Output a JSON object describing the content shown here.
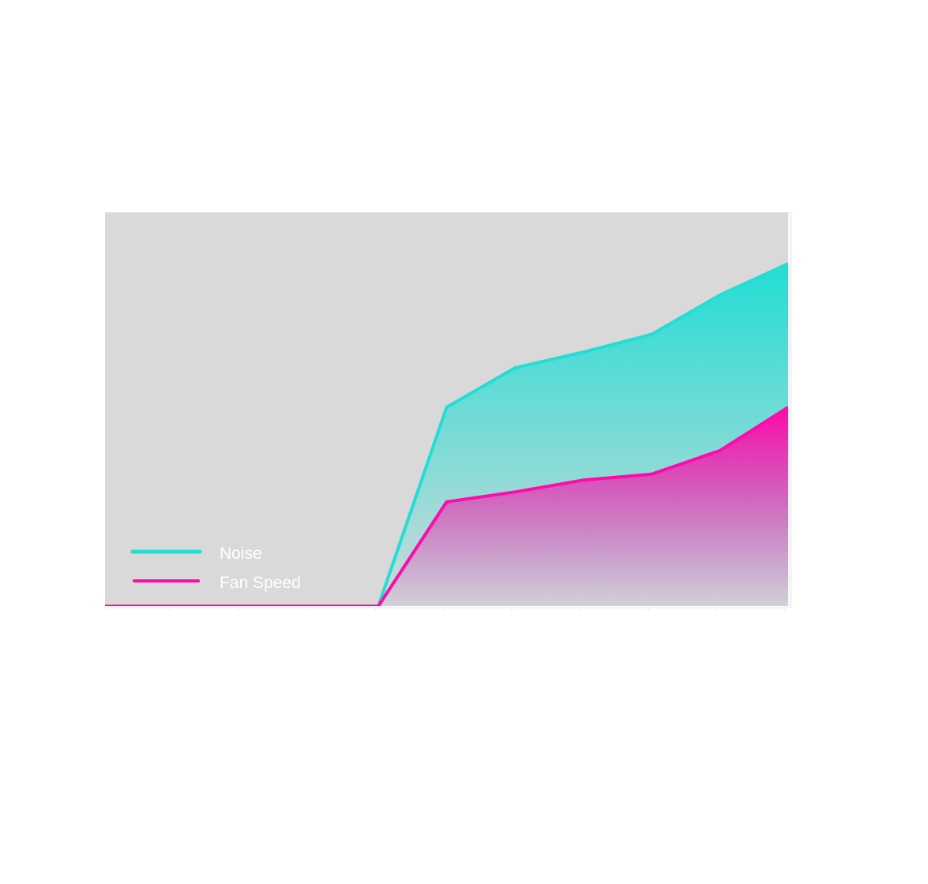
{
  "chart_data": {
    "type": "area",
    "title": "",
    "xlabel": "",
    "ylabel": "",
    "x": [
      0,
      1,
      2,
      3,
      4,
      5,
      6,
      7,
      8,
      9,
      10
    ],
    "series": [
      {
        "name": "Noise",
        "color": "#22ddd4",
        "values": [
          0,
          0,
          0,
          0,
          0,
          50.5,
          60.5,
          64.5,
          69,
          79,
          87
        ]
      },
      {
        "name": "Fan Speed",
        "color": "#ff0aab",
        "values": [
          0,
          0,
          0,
          0,
          0,
          26.5,
          29,
          32,
          33.5,
          39.5,
          50.5
        ]
      }
    ],
    "ylim": [
      0,
      100
    ],
    "xlim": [
      0,
      10
    ],
    "grid": false,
    "legend": "bottom-left",
    "plot_background": "#d9d9d9"
  }
}
